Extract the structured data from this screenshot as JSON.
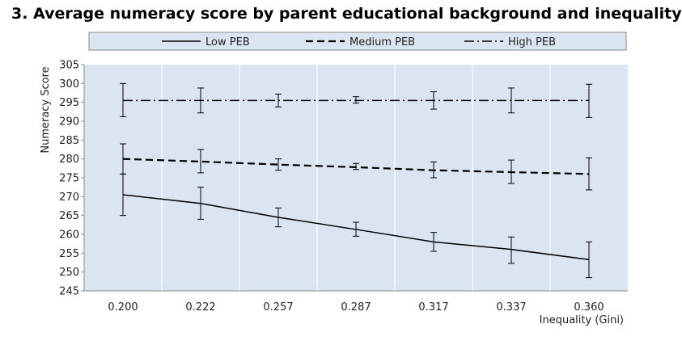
{
  "chart_data": {
    "type": "line",
    "title": "3. Average numeracy score by parent educational background and inequality",
    "xlabel": "Inequality (Gini)",
    "ylabel": "Numeracy Score",
    "categories": [
      "0.200",
      "0.222",
      "0.257",
      "0.287",
      "0.317",
      "0.337",
      "0.360"
    ],
    "ylim": [
      245,
      305
    ],
    "ytick_step": 5,
    "grid": "vertical",
    "legend_position": "top",
    "series": [
      {
        "name": "Low PEB",
        "style": "solid",
        "values": [
          270.5,
          268.2,
          264.5,
          261.3,
          258.0,
          256.0,
          253.3
        ],
        "err_low": [
          265.0,
          264.0,
          262.0,
          259.5,
          255.5,
          252.3,
          248.5
        ],
        "err_high": [
          276.0,
          272.5,
          267.0,
          263.2,
          260.5,
          259.3,
          258.0
        ]
      },
      {
        "name": "Medium PEB",
        "style": "dashed",
        "values": [
          280.0,
          279.3,
          278.5,
          277.8,
          277.0,
          276.5,
          276.0
        ],
        "err_low": [
          276.0,
          276.3,
          277.0,
          277.2,
          275.0,
          273.5,
          271.8
        ],
        "err_high": [
          284.0,
          282.5,
          280.0,
          278.8,
          279.2,
          279.7,
          280.3
        ]
      },
      {
        "name": "High PEB",
        "style": "dashdot",
        "values": [
          295.5,
          295.5,
          295.5,
          295.5,
          295.5,
          295.5,
          295.5
        ],
        "err_low": [
          291.2,
          292.2,
          293.8,
          294.8,
          293.2,
          292.2,
          291.0
        ],
        "err_high": [
          300.0,
          298.8,
          297.2,
          296.5,
          297.8,
          298.8,
          299.8
        ]
      }
    ],
    "colors": {
      "plot_background": "#dbe5f1",
      "legend_background": "#dbe5f1",
      "line": "#000000",
      "gridline": "#ffffff",
      "axis": "#8a8a8a"
    }
  }
}
